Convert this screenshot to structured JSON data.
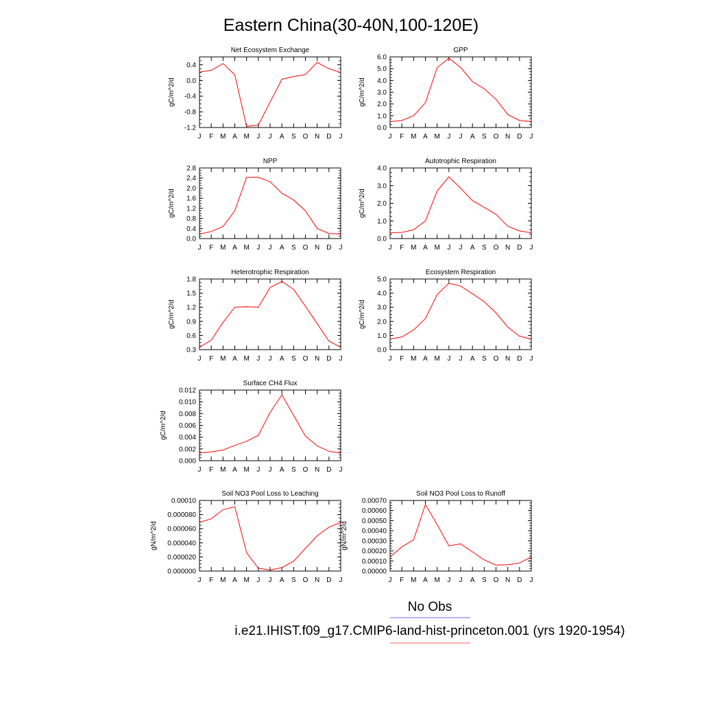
{
  "figure": {
    "title": "Eastern China(30-40N,100-120E)",
    "legend": {
      "entries": [
        {
          "label": "No Obs",
          "color": "#6b6bef"
        },
        {
          "label": "i.e21.IHIST.f09_g17.CMIP6-land-hist-princeton.001 (yrs 1920-1954)",
          "color": "#ff5c5c"
        }
      ]
    },
    "series_color": "#ff0000"
  },
  "chart_data": [
    {
      "type": "line",
      "title": "Net Ecosystem Exchange",
      "ylabel": "gC/m^2/d",
      "categories": [
        "J",
        "F",
        "M",
        "A",
        "M",
        "J",
        "J",
        "A",
        "S",
        "O",
        "N",
        "D",
        "J"
      ],
      "values": [
        0.21,
        0.26,
        0.43,
        0.14,
        -1.17,
        -1.14,
        -0.55,
        0.03,
        0.1,
        0.15,
        0.46,
        0.3,
        0.2
      ],
      "ylim": [
        -1.2,
        0.6
      ],
      "yticks": [
        -1.2,
        -0.8,
        -0.4,
        0.0,
        0.4
      ],
      "ytick_labels": [
        "-1.2",
        "-0.8",
        "-0.4",
        "0.0",
        "0.4"
      ]
    },
    {
      "type": "line",
      "title": "GPP",
      "ylabel": "gC/m^2/d",
      "categories": [
        "J",
        "F",
        "M",
        "A",
        "M",
        "J",
        "J",
        "A",
        "S",
        "O",
        "N",
        "D",
        "J"
      ],
      "values": [
        0.5,
        0.6,
        1.0,
        2.1,
        5.1,
        5.9,
        5.1,
        3.9,
        3.3,
        2.4,
        1.1,
        0.6,
        0.5
      ],
      "ylim": [
        0.0,
        6.0
      ],
      "yticks": [
        0.0,
        1.0,
        2.0,
        3.0,
        4.0,
        5.0,
        6.0
      ],
      "ytick_labels": [
        "0.0",
        "1.0",
        "2.0",
        "3.0",
        "4.0",
        "5.0",
        "6.0"
      ]
    },
    {
      "type": "line",
      "title": "NPP",
      "ylabel": "gC/m^2/d",
      "categories": [
        "J",
        "F",
        "M",
        "A",
        "M",
        "J",
        "J",
        "A",
        "S",
        "O",
        "N",
        "D",
        "J"
      ],
      "values": [
        0.18,
        0.28,
        0.48,
        1.1,
        2.43,
        2.43,
        2.25,
        1.8,
        1.53,
        1.1,
        0.4,
        0.2,
        0.18
      ],
      "ylim": [
        0.0,
        2.8
      ],
      "yticks": [
        0.0,
        0.4,
        0.8,
        1.2,
        1.6,
        2.0,
        2.4,
        2.8
      ],
      "ytick_labels": [
        "0.0",
        "0.4",
        "0.8",
        "1.2",
        "1.6",
        "2.0",
        "2.4",
        "2.8"
      ]
    },
    {
      "type": "line",
      "title": "Autotrophic Respiration",
      "ylabel": "gC/m^2/d",
      "categories": [
        "J",
        "F",
        "M",
        "A",
        "M",
        "J",
        "J",
        "A",
        "S",
        "O",
        "N",
        "D",
        "J"
      ],
      "values": [
        0.33,
        0.35,
        0.5,
        1.0,
        2.7,
        3.5,
        2.85,
        2.15,
        1.77,
        1.37,
        0.7,
        0.43,
        0.33
      ],
      "ylim": [
        0.0,
        4.0
      ],
      "yticks": [
        0.0,
        1.0,
        2.0,
        3.0,
        4.0
      ],
      "ytick_labels": [
        "0.0",
        "1.0",
        "2.0",
        "3.0",
        "4.0"
      ]
    },
    {
      "type": "line",
      "title": "Heterotrophic Respiration",
      "ylabel": "gC/m^2/d",
      "categories": [
        "J",
        "F",
        "M",
        "A",
        "M",
        "J",
        "J",
        "A",
        "S",
        "O",
        "N",
        "D",
        "J"
      ],
      "values": [
        0.35,
        0.5,
        0.88,
        1.2,
        1.21,
        1.2,
        1.62,
        1.75,
        1.58,
        1.22,
        0.85,
        0.48,
        0.35
      ],
      "ylim": [
        0.3,
        1.8
      ],
      "yticks": [
        0.3,
        0.6,
        0.9,
        1.2,
        1.5,
        1.8
      ],
      "ytick_labels": [
        "0.3",
        "0.6",
        "0.9",
        "1.2",
        "1.5",
        "1.8"
      ]
    },
    {
      "type": "line",
      "title": "Ecosystem Respiration",
      "ylabel": "gC/m^2/d",
      "categories": [
        "J",
        "F",
        "M",
        "A",
        "M",
        "J",
        "J",
        "A",
        "S",
        "O",
        "N",
        "D",
        "J"
      ],
      "values": [
        0.75,
        0.9,
        1.4,
        2.2,
        3.9,
        4.7,
        4.5,
        3.95,
        3.4,
        2.6,
        1.6,
        0.95,
        0.75
      ],
      "ylim": [
        0.0,
        5.0
      ],
      "yticks": [
        0.0,
        1.0,
        2.0,
        3.0,
        4.0,
        5.0
      ],
      "ytick_labels": [
        "0.0",
        "1.0",
        "2.0",
        "3.0",
        "4.0",
        "5.0"
      ]
    },
    {
      "type": "line",
      "title": "Surface CH4 Flux",
      "ylabel": "gC/m^2/d",
      "categories": [
        "J",
        "F",
        "M",
        "A",
        "M",
        "J",
        "J",
        "A",
        "S",
        "O",
        "N",
        "D",
        "J"
      ],
      "values": [
        0.0013,
        0.0015,
        0.0018,
        0.0026,
        0.0033,
        0.0043,
        0.0082,
        0.0112,
        0.0077,
        0.0042,
        0.0025,
        0.0016,
        0.0013
      ],
      "ylim": [
        0.0,
        0.012
      ],
      "yticks": [
        0.0,
        0.002,
        0.004,
        0.006,
        0.008,
        0.01,
        0.012
      ],
      "ytick_labels": [
        "0.000",
        "0.002",
        "0.004",
        "0.006",
        "0.008",
        "0.010",
        "0.012"
      ]
    },
    {
      "type": "line",
      "title": "Soil NO3 Pool Loss to Leaching",
      "ylabel": "gN/m^2/d",
      "categories": [
        "J",
        "F",
        "M",
        "A",
        "M",
        "J",
        "J",
        "A",
        "S",
        "O",
        "N",
        "D",
        "J"
      ],
      "values": [
        6.9e-05,
        7.4e-05,
        8.7e-05,
        9.1e-05,
        2.6e-05,
        4e-06,
        1.5e-06,
        5e-06,
        1.4e-05,
        3.2e-05,
        5e-05,
        6.2e-05,
        6.9e-05
      ],
      "ylim": [
        0.0,
        0.0001
      ],
      "yticks": [
        0.0,
        2e-05,
        4e-05,
        6e-05,
        8e-05,
        0.0001
      ],
      "ytick_labels": [
        "0.000000",
        "0.000020",
        "0.000040",
        "0.000060",
        "0.000080",
        "0.00010"
      ]
    },
    {
      "type": "line",
      "title": "Soil NO3 Pool Loss to Runoff",
      "ylabel": "gN/m^2/d",
      "categories": [
        "J",
        "F",
        "M",
        "A",
        "M",
        "J",
        "J",
        "A",
        "S",
        "O",
        "N",
        "D",
        "J"
      ],
      "values": [
        0.00014,
        0.00024,
        0.00031,
        0.00066,
        0.00046,
        0.00025,
        0.00027,
        0.00019,
        0.00011,
        6e-05,
        6.3e-05,
        8e-05,
        0.00014
      ],
      "ylim": [
        0.0,
        0.0007
      ],
      "yticks": [
        0.0,
        0.0001,
        0.0002,
        0.0003,
        0.0004,
        0.0005,
        0.0006,
        0.0007
      ],
      "ytick_labels": [
        "0.00000",
        "0.00010",
        "0.00020",
        "0.00030",
        "0.00040",
        "0.00050",
        "0.00060",
        "0.00070"
      ]
    }
  ]
}
